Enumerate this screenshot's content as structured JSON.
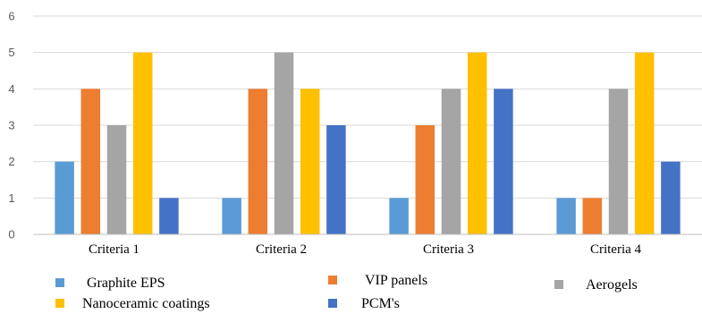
{
  "chart_data": {
    "type": "bar",
    "categories": [
      "Criteria 1",
      "Criteria 2",
      "Criteria 3",
      "Criteria 4"
    ],
    "series": [
      {
        "name": "Graphite EPS",
        "color": "#5b9bd5",
        "values": [
          2,
          1,
          1,
          1
        ]
      },
      {
        "name": "VIP panels",
        "color": "#ed7d31",
        "values": [
          4,
          4,
          3,
          1
        ]
      },
      {
        "name": "Aerogels",
        "color": "#a5a5a5",
        "values": [
          3,
          5,
          4,
          4
        ]
      },
      {
        "name": "Nanoceramic coatings",
        "color": "#ffc000",
        "values": [
          5,
          4,
          5,
          5
        ]
      },
      {
        "name": "PCM's",
        "color": "#4472c4",
        "values": [
          1,
          3,
          4,
          2
        ]
      }
    ],
    "yticks": [
      "0",
      "1",
      "2",
      "3",
      "4",
      "5",
      "6"
    ],
    "ylim": [
      0,
      6
    ],
    "grid": true,
    "legend_position": "bottom",
    "title": "",
    "xlabel": "",
    "ylabel": ""
  }
}
